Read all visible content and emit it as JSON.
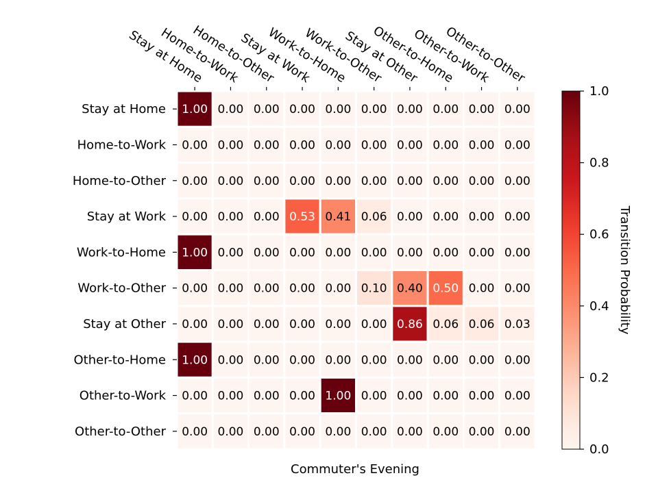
{
  "chart_data": {
    "type": "heatmap",
    "title": "",
    "xlabel": "Commuter's Evening",
    "ylabel": "",
    "categories": [
      "Stay at Home",
      "Home-to-Work",
      "Home-to-Other",
      "Stay at Work",
      "Work-to-Home",
      "Work-to-Other",
      "Stay at Other",
      "Other-to-Home",
      "Other-to-Work",
      "Other-to-Other"
    ],
    "x": [
      "Stay at Home",
      "Home-to-Work",
      "Home-to-Other",
      "Stay at Work",
      "Work-to-Home",
      "Work-to-Other",
      "Stay at Other",
      "Other-to-Home",
      "Other-to-Work",
      "Other-to-Other"
    ],
    "y": [
      "Stay at Home",
      "Home-to-Work",
      "Home-to-Other",
      "Stay at Work",
      "Work-to-Home",
      "Work-to-Other",
      "Stay at Other",
      "Other-to-Home",
      "Other-to-Work",
      "Other-to-Other"
    ],
    "x_tick_position": "top",
    "values": [
      [
        1.0,
        0.0,
        0.0,
        0.0,
        0.0,
        0.0,
        0.0,
        0.0,
        0.0,
        0.0
      ],
      [
        0.0,
        0.0,
        0.0,
        0.0,
        0.0,
        0.0,
        0.0,
        0.0,
        0.0,
        0.0
      ],
      [
        0.0,
        0.0,
        0.0,
        0.0,
        0.0,
        0.0,
        0.0,
        0.0,
        0.0,
        0.0
      ],
      [
        0.0,
        0.0,
        0.0,
        0.53,
        0.41,
        0.06,
        0.0,
        0.0,
        0.0,
        0.0
      ],
      [
        1.0,
        0.0,
        0.0,
        0.0,
        0.0,
        0.0,
        0.0,
        0.0,
        0.0,
        0.0
      ],
      [
        0.0,
        0.0,
        0.0,
        0.0,
        0.0,
        0.1,
        0.4,
        0.5,
        0.0,
        0.0
      ],
      [
        0.0,
        0.0,
        0.0,
        0.0,
        0.0,
        0.0,
        0.86,
        0.06,
        0.06,
        0.03
      ],
      [
        1.0,
        0.0,
        0.0,
        0.0,
        0.0,
        0.0,
        0.0,
        0.0,
        0.0,
        0.0
      ],
      [
        0.0,
        0.0,
        0.0,
        0.0,
        1.0,
        0.0,
        0.0,
        0.0,
        0.0,
        0.0
      ],
      [
        0.0,
        0.0,
        0.0,
        0.0,
        0.0,
        0.0,
        0.0,
        0.0,
        0.0,
        0.0
      ]
    ],
    "value_format": "0.00",
    "colorbar": {
      "label": "Transition Probability",
      "range": [
        0.0,
        1.0
      ],
      "ticks": [
        "0.0",
        "0.2",
        "0.4",
        "0.6",
        "0.8",
        "1.0"
      ],
      "colormap": "Reds"
    },
    "grid": false,
    "cell_separator_color": "#ffffff"
  }
}
